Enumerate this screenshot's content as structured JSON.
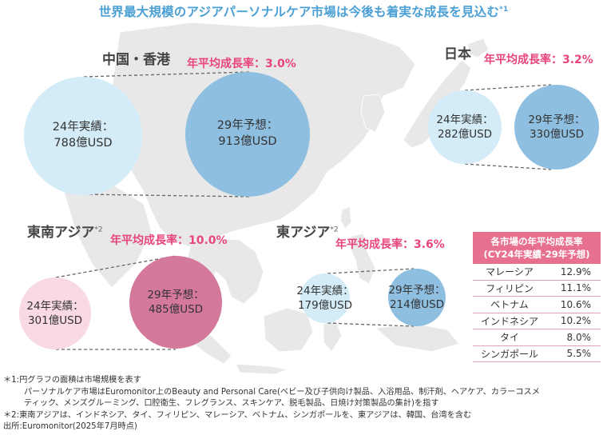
{
  "title": "世界最大規模のアジアパーソナルケア市場は今後も着実な成長を見込む",
  "title_note": "*1",
  "regions": {
    "china": {
      "name": "中国・香港",
      "cagr": "年平均成長率：3.0%",
      "actual_l1": "24年実績：",
      "actual_l2": "788億USD",
      "forecast_l1": "29年予想：",
      "forecast_l2": "913億USD"
    },
    "japan": {
      "name": "日本",
      "cagr": "年平均成長率：3.2%",
      "actual_l1": "24年実績：",
      "actual_l2": "282億USD",
      "forecast_l1": "29年予想：",
      "forecast_l2": "330億USD"
    },
    "southeast": {
      "name": "東南アジア",
      "note": "*2",
      "cagr": "年平均成長率：10.0%",
      "actual_l1": "24年実績：",
      "actual_l2": "301億USD",
      "forecast_l1": "29年予想：",
      "forecast_l2": "485億USD"
    },
    "east": {
      "name": "東アジア",
      "note": "*2",
      "cagr": "年平均成長率：3.6%",
      "actual_l1": "24年実績：",
      "actual_l2": "179億USD",
      "forecast_l1": "29年予想：",
      "forecast_l2": "214億USD"
    }
  },
  "rate_table": {
    "header_l1": "各市場の年平均成長率",
    "header_l2": "(CY24年実績-29年予想)",
    "rows": [
      {
        "country": "マレーシア",
        "rate": "12.9%"
      },
      {
        "country": "フィリピン",
        "rate": "11.1%"
      },
      {
        "country": "ベトナム",
        "rate": "10.6%"
      },
      {
        "country": "インドネシア",
        "rate": "10.2%"
      },
      {
        "country": "タイ",
        "rate": "8.0%"
      },
      {
        "country": "シンガポール",
        "rate": "5.5%"
      }
    ]
  },
  "notes": {
    "n1_a": "＊1:円グラフの面積は市場規模を表す",
    "n1_b": "パーソナルケア市場はEuromonitor上のBeauty and Personal Care(ベビー及び子供向け製品、入浴用品、制汗剤、ヘアケア、カラーコスメ",
    "n1_c": "ティック、メンズグルーミング、口腔衛生、フレグランス、スキンケア、脱毛製品、日焼け対策製品の集計)を指す",
    "n2": "＊2:東南アジアは、インドネシア、タイ、フィリピン、マレーシア、ベトナム、シンガポールを、東アジアは、韓国、台湾を含む",
    "source": "出所:Euromonitor(2025年7月時点)"
  },
  "colors": {
    "title": "#4a9fd4",
    "cagr": "#e8457a",
    "light_blue": "#d3ecf8",
    "mid_blue": "#8fbfe0",
    "light_pink": "#f9d9e4",
    "mid_pink": "#d4799c",
    "map": "#e6e6e6"
  }
}
